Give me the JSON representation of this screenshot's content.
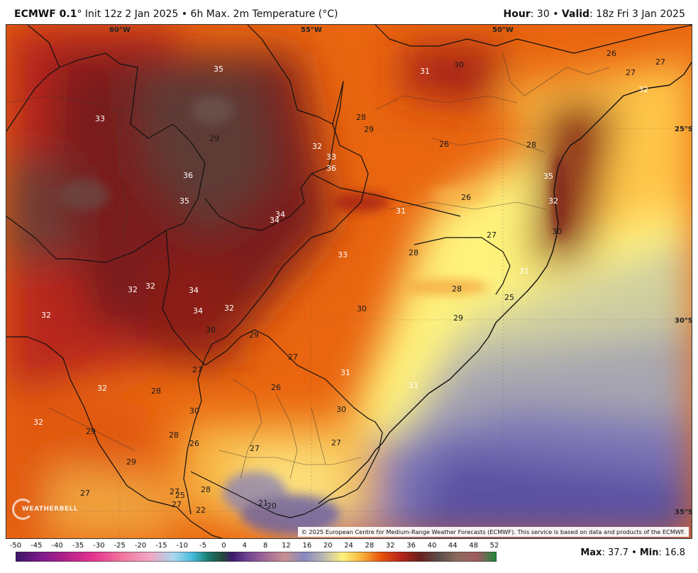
{
  "header": {
    "model": "ECMWF 0.1",
    "degree_mark": "°",
    "init": "Init 12z 2 Jan 2025",
    "sep": "•",
    "product": "6h Max. 2m Temperature (°C)",
    "hour_label": "Hour",
    "hour_value": ": 30",
    "valid_label": "Valid",
    "valid_value": ": 18z Fri 3 Jan 2025"
  },
  "map": {
    "lon_labels": [
      "60°W",
      "55°W",
      "50°W"
    ],
    "lat_labels": [
      "25°S",
      "30°S",
      "35°S"
    ],
    "temperature_labels": [
      "35",
      "31",
      "30",
      "26",
      "27",
      "27",
      "32",
      "33",
      "36",
      "29",
      "28",
      "29",
      "32",
      "26",
      "28",
      "33",
      "36",
      "35",
      "35",
      "26",
      "31",
      "32",
      "34",
      "34",
      "27",
      "31",
      "33",
      "28",
      "30",
      "32",
      "32",
      "34",
      "28",
      "25",
      "32",
      "34",
      "32",
      "30",
      "30",
      "29",
      "29",
      "27",
      "31",
      "27",
      "31",
      "32",
      "28",
      "26",
      "30",
      "30",
      "32",
      "29",
      "28",
      "26",
      "27",
      "27",
      "29",
      "27",
      "27",
      "25",
      "28",
      "27",
      "22",
      "21",
      "20"
    ],
    "logo_text": "WEATHERBELL",
    "copyright": "© 2025 European Centre for Medium-Range Weather Forecasts (ECMWF). This service is based on data and products of the ECMWF."
  },
  "colorbar": {
    "ticks": [
      "-50",
      "-45",
      "-40",
      "-35",
      "-30",
      "-25",
      "-20",
      "-15",
      "-10",
      "-5",
      "0",
      "4",
      "8",
      "12",
      "16",
      "20",
      "24",
      "28",
      "32",
      "36",
      "40",
      "44",
      "48",
      "52"
    ]
  },
  "stats": {
    "max_label": "Max",
    "max_value": ": 37.7",
    "sep": "•",
    "min_label": "Min",
    "min_value": ": 16.8"
  },
  "colors": {
    "hot": "#6b1f1a",
    "warm": "#e8520c",
    "mild": "#f7b23a",
    "cool": "#fff27a",
    "cold": "#7a6fb0"
  }
}
